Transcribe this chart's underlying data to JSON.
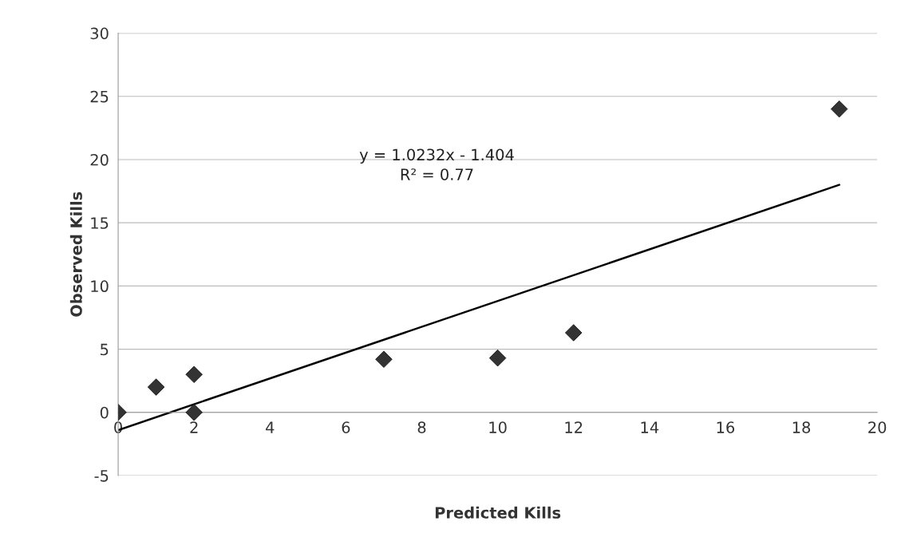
{
  "chart_data": {
    "type": "scatter",
    "xlabel": "Predicted Kills",
    "ylabel": "Observed Kills",
    "xlim": [
      0,
      20
    ],
    "ylim": [
      -5,
      30
    ],
    "xticks": [
      0,
      2,
      4,
      6,
      8,
      10,
      12,
      14,
      16,
      18,
      20
    ],
    "yticks": [
      -5,
      0,
      5,
      10,
      15,
      20,
      25,
      30
    ],
    "grid": "y",
    "marker": "diamond",
    "series": [
      {
        "color": "#333333",
        "x": [
          0,
          1,
          2,
          2,
          7,
          10,
          12,
          19
        ],
        "values": [
          0,
          2.0,
          3.0,
          0,
          4.2,
          4.3,
          6.3,
          24.0
        ]
      },
      {
        "type": "line",
        "color": "#000000",
        "marker": "none",
        "x": [
          0,
          19
        ],
        "values": [
          -1.4,
          18.0
        ]
      }
    ],
    "annotations": [
      "y = 1.0232x - 1.404\nR² = 0.77"
    ]
  }
}
